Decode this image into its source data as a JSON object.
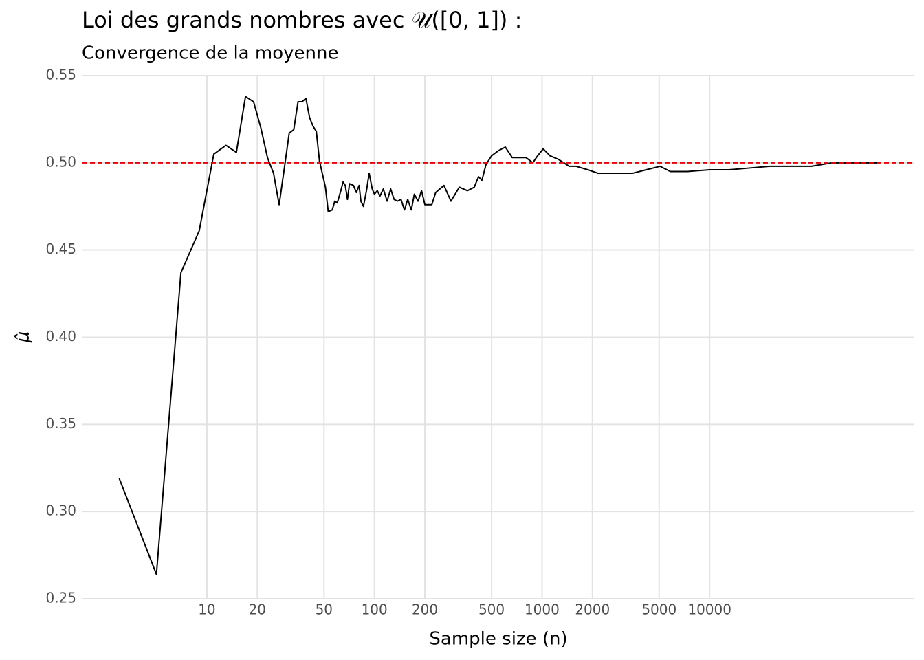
{
  "chart_data": {
    "type": "line",
    "title": "Loi des grands nombres avec 𝒰([0, 1]) :",
    "subtitle": "Convergence de la moyenne",
    "x_label": "Sample size (n)",
    "y_label": "μ̂",
    "log_x": true,
    "grid": true,
    "xlim": [
      1.81,
      166700
    ],
    "ylim": [
      0.25,
      0.55
    ],
    "xticks": [
      10,
      20,
      50,
      100,
      200,
      500,
      1000,
      2000,
      5000,
      10000
    ],
    "yticks": [
      0.25,
      {
        "value": 0.3,
        "label": "0.30"
      },
      0.35,
      {
        "value": 0.4,
        "label": "0.40"
      },
      0.45,
      {
        "value": 0.5,
        "label": "0.50"
      },
      0.55
    ],
    "reference_line": {
      "y": 0.5,
      "color": "#e8000b",
      "dashed": true
    },
    "series": [
      {
        "name": "moyenne",
        "color": "#000000",
        "x": [
          3,
          5,
          7,
          9,
          11,
          13,
          15,
          17,
          19,
          21,
          23,
          25,
          27,
          29,
          31,
          33,
          35,
          37,
          39,
          41,
          43,
          45,
          47,
          51,
          53,
          56,
          58,
          60,
          63,
          65,
          67,
          69,
          71,
          75,
          78,
          81,
          83,
          86,
          90,
          93,
          97,
          100,
          104,
          108,
          113,
          119,
          125,
          131,
          137,
          144,
          151,
          158,
          166,
          173,
          182,
          191,
          200,
          220,
          232,
          260,
          286,
          321,
          359,
          394,
          418,
          438,
          463,
          500,
          550,
          604,
          664,
          802,
          881,
          941,
          1016,
          1117,
          1251,
          1455,
          1600,
          1877,
          2161,
          2491,
          2870,
          3467,
          4188,
          5058,
          5834,
          7385,
          10000,
          13030,
          17300,
          22970,
          30500,
          40500,
          53700,
          71300,
          100000
        ],
        "values": [
          0.319,
          0.264,
          0.437,
          0.461,
          0.505,
          0.51,
          0.506,
          0.538,
          0.535,
          0.52,
          0.503,
          0.494,
          0.476,
          0.497,
          0.517,
          0.519,
          0.535,
          0.535,
          0.537,
          0.526,
          0.521,
          0.518,
          0.501,
          0.486,
          0.472,
          0.473,
          0.478,
          0.477,
          0.484,
          0.489,
          0.487,
          0.479,
          0.488,
          0.487,
          0.483,
          0.487,
          0.478,
          0.475,
          0.485,
          0.494,
          0.485,
          0.482,
          0.484,
          0.481,
          0.485,
          0.478,
          0.485,
          0.479,
          0.478,
          0.479,
          0.473,
          0.479,
          0.473,
          0.482,
          0.478,
          0.484,
          0.476,
          0.476,
          0.483,
          0.487,
          0.478,
          0.486,
          0.484,
          0.486,
          0.492,
          0.49,
          0.499,
          0.504,
          0.507,
          0.509,
          0.503,
          0.503,
          0.5,
          0.504,
          0.508,
          0.504,
          0.502,
          0.498,
          0.498,
          0.496,
          0.494,
          0.494,
          0.494,
          0.494,
          0.496,
          0.498,
          0.495,
          0.495,
          0.496,
          0.496,
          0.497,
          0.498,
          0.498,
          0.498,
          0.5,
          0.5,
          0.5
        ]
      }
    ]
  }
}
